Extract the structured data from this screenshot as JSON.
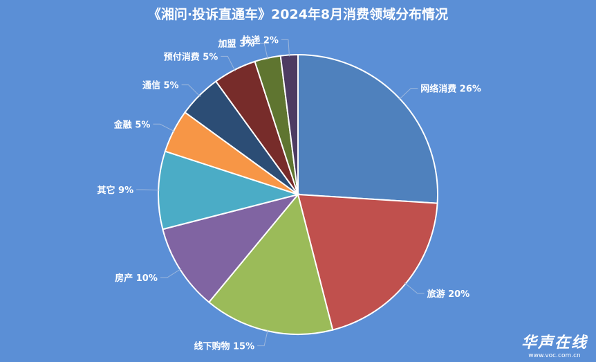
{
  "chart_data": {
    "type": "pie",
    "title": "《湘问·投诉直通车》2024年8月消费领域分布情况",
    "categories": [
      "网络消费",
      "旅游",
      "线下购物",
      "房产",
      "其它",
      "金融",
      "通信",
      "预付消费",
      "加盟",
      "快递"
    ],
    "values": [
      26,
      20,
      15,
      10,
      9,
      5,
      5,
      5,
      3,
      2
    ],
    "labels": [
      "网络消费 26%",
      "旅游 20%",
      "线下购物 15%",
      "房产 10%",
      "其它 9%",
      "金融 5%",
      "通信 5%",
      "预付消费 5%",
      "加盟 3%",
      "快递 2%"
    ],
    "colors": [
      "#4f81bd",
      "#c0504d",
      "#9bbb59",
      "#8064a2",
      "#4bacc6",
      "#f79646",
      "#2c4d75",
      "#772c2a",
      "#5f7530",
      "#4d3b62"
    ]
  },
  "watermark": {
    "logo": "华声在线",
    "url": "www.voc.com.cn"
  }
}
